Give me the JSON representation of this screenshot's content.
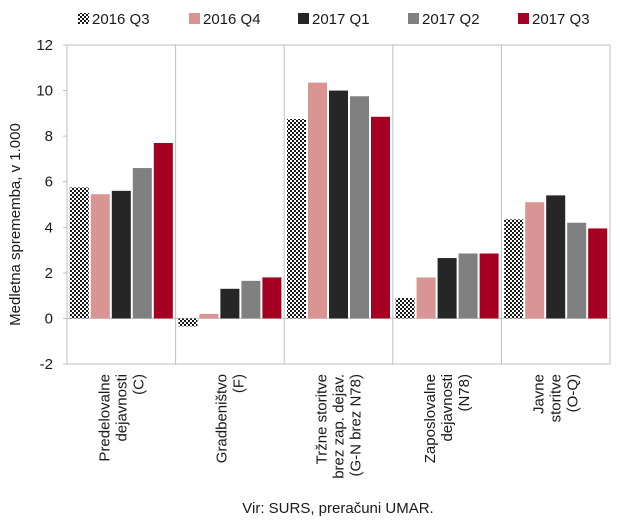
{
  "chart_data": {
    "type": "bar",
    "categories": [
      [
        "Predelovalne",
        "dejavnosti",
        "(C)"
      ],
      [
        "Gradbeništvo",
        "(F)"
      ],
      [
        "Tržne storitve",
        "brez zap. dejav.",
        "(G-N brez N78)"
      ],
      [
        "Zaposlovalne",
        "dejavnosti",
        "(N78)"
      ],
      [
        "Javne",
        "storitve",
        "(O-Q)"
      ]
    ],
    "series": [
      {
        "name": "2016 Q3",
        "color": "#1a1a1a",
        "pattern": "checker",
        "values": [
          5.75,
          -0.35,
          8.75,
          0.9,
          4.35
        ]
      },
      {
        "name": "2016 Q4",
        "color": "#d99594",
        "values": [
          5.45,
          0.2,
          10.35,
          1.8,
          5.1
        ]
      },
      {
        "name": "2017 Q1",
        "color": "#262626",
        "values": [
          5.6,
          1.3,
          10.0,
          2.65,
          5.4
        ]
      },
      {
        "name": "2017 Q2",
        "color": "#808080",
        "values": [
          6.6,
          1.65,
          9.75,
          2.85,
          4.2
        ]
      },
      {
        "name": "2017 Q3",
        "color": "#a50021",
        "values": [
          7.7,
          1.8,
          8.85,
          2.85,
          3.95
        ]
      }
    ],
    "ylabel": "Medletna sprememba, v 1.000",
    "ylim": [
      -2,
      12
    ],
    "yticks": [
      -2,
      0,
      2,
      4,
      6,
      8,
      10,
      12
    ],
    "legend": "top",
    "grid": false
  },
  "source_note": "Vir: SURS, preračuni UMAR."
}
